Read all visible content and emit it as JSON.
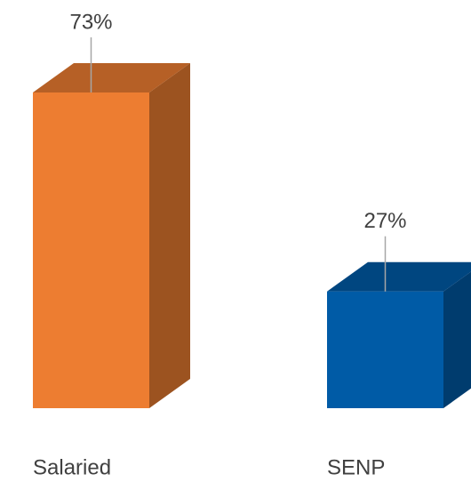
{
  "chart_data": {
    "type": "bar3d",
    "categories": [
      "Salaried",
      "SENP"
    ],
    "values": [
      73,
      27
    ],
    "value_labels": [
      "73%",
      "27%"
    ],
    "colors": [
      "#ED7D31",
      "#005BA6"
    ]
  }
}
